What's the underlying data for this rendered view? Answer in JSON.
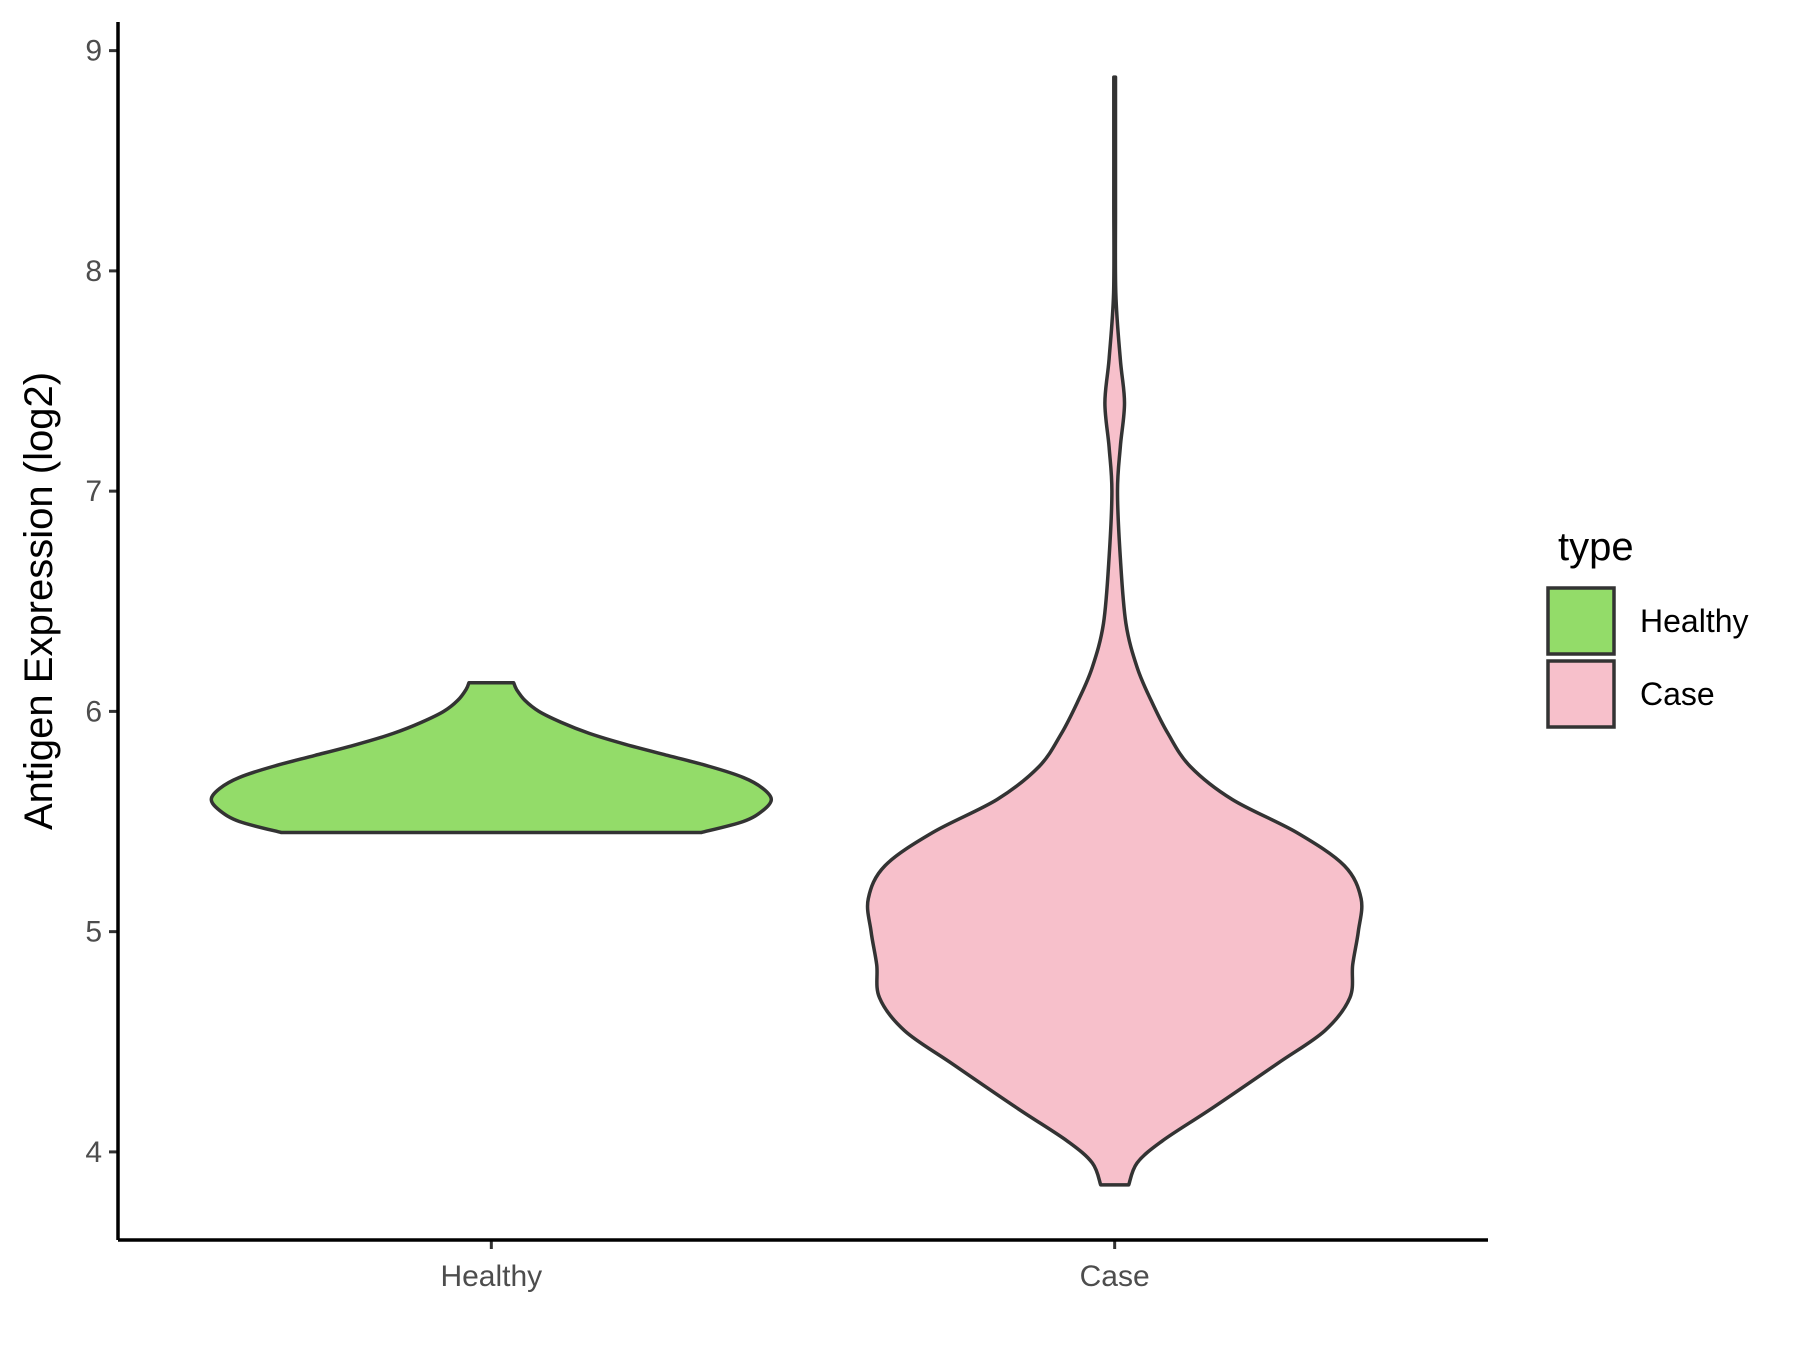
{
  "chart_data": {
    "type": "violin",
    "ylabel": "Antigen Expression (log2)",
    "xlabel": "",
    "ylim": [
      3.6,
      9.13
    ],
    "yticks": [
      4,
      5,
      6,
      7,
      8,
      9
    ],
    "categories": [
      "Healthy",
      "Case"
    ],
    "grid": false,
    "legend": {
      "title": "type",
      "position": "right",
      "entries": [
        {
          "label": "Healthy",
          "color": "#93DC69"
        },
        {
          "label": "Case",
          "color": "#F7C0CB"
        }
      ]
    },
    "series": [
      {
        "category": "Healthy",
        "color": "#93DC69",
        "min": 5.45,
        "max": 6.13,
        "density": [
          [
            5.45,
            0.75
          ],
          [
            5.5,
            0.9
          ],
          [
            5.55,
            0.97
          ],
          [
            5.6,
            1.0
          ],
          [
            5.65,
            0.97
          ],
          [
            5.7,
            0.9
          ],
          [
            5.75,
            0.78
          ],
          [
            5.8,
            0.63
          ],
          [
            5.85,
            0.48
          ],
          [
            5.9,
            0.35
          ],
          [
            5.95,
            0.25
          ],
          [
            6.0,
            0.17
          ],
          [
            6.05,
            0.12
          ],
          [
            6.1,
            0.09
          ],
          [
            6.13,
            0.08
          ]
        ]
      },
      {
        "category": "Case",
        "color": "#F7C0CB",
        "min": 3.85,
        "max": 8.88,
        "density": [
          [
            3.85,
            0.05
          ],
          [
            3.95,
            0.08
          ],
          [
            4.05,
            0.17
          ],
          [
            4.2,
            0.35
          ],
          [
            4.4,
            0.58
          ],
          [
            4.55,
            0.75
          ],
          [
            4.7,
            0.84
          ],
          [
            4.85,
            0.85
          ],
          [
            5.0,
            0.87
          ],
          [
            5.15,
            0.88
          ],
          [
            5.3,
            0.82
          ],
          [
            5.45,
            0.65
          ],
          [
            5.6,
            0.42
          ],
          [
            5.75,
            0.27
          ],
          [
            5.9,
            0.19
          ],
          [
            6.05,
            0.13
          ],
          [
            6.2,
            0.08
          ],
          [
            6.4,
            0.04
          ],
          [
            6.7,
            0.02
          ],
          [
            7.0,
            0.01
          ],
          [
            7.2,
            0.02
          ],
          [
            7.4,
            0.035
          ],
          [
            7.6,
            0.02
          ],
          [
            7.9,
            0.004
          ],
          [
            8.3,
            0.003
          ],
          [
            8.6,
            0.003
          ],
          [
            8.88,
            0.003
          ]
        ]
      }
    ]
  }
}
